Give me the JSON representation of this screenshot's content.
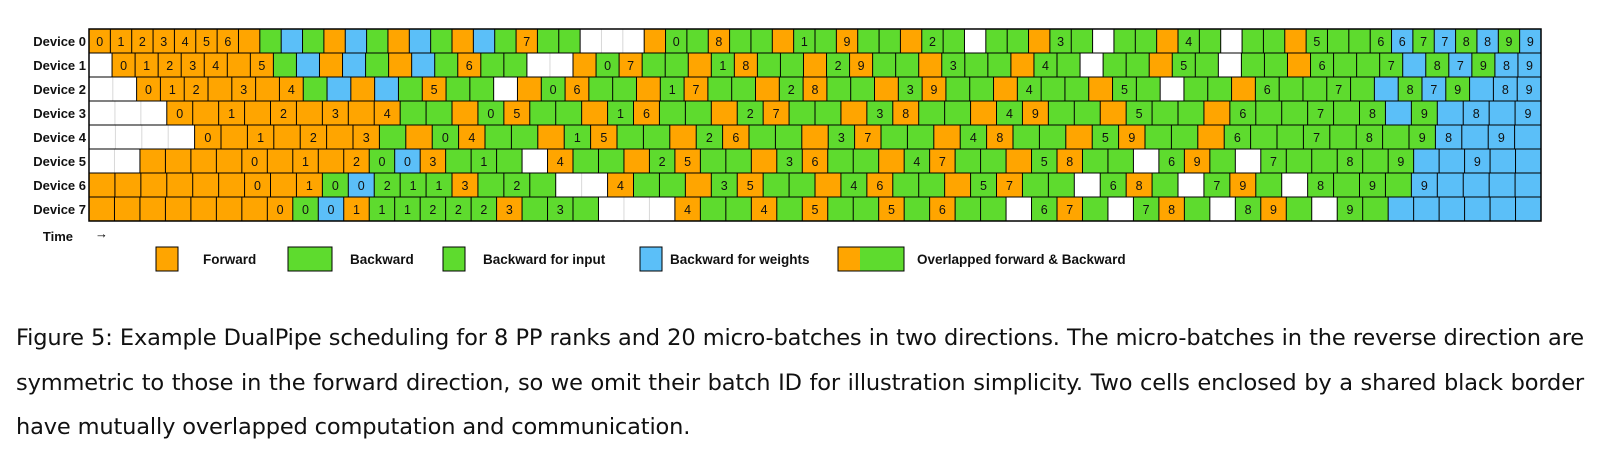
{
  "figure": {
    "devices": [
      "Device 0",
      "Device 1",
      "Device 2",
      "Device 3",
      "Device 4",
      "Device 5",
      "Device 6",
      "Device 7"
    ],
    "time_label": "Time",
    "time_arrow": "→",
    "rows": [
      "F0 F1 F2 F3 F4 F5 F6 F B W B F W B F W B F W B F7 B B _ _ _ F B0 B F8 B B F B1 B F9 B B F B2 B _ B B F B3 B _ B B F B4 B _ B B F B5 B B B6 W6 B7 W7 B8 W8 B9 W9",
      "_ F0 F1 F2 F3 F4 F F5 B W F W B F W B F6 B B _ _ F B0 F7 B B F B1 F8 B B F B2 F9 B B F B3 B B F B4 B _ B B F B5 B _ B B F B6 B B B7 W B8 W7 B9 W8 W9",
      "_ _ F0 F1 F2 F F3 F F4 B W F W B F5 B B _ F B0 F6 B B F B1 F7 B B F B2 F8 B B F B3 F9 B B F B4 B B F B5 B _ B B F B6 B B B7 B W B8 W7 B9 W W8 W9",
      "_ _ _ F0 F F1 F F2 F F3 F F4 B B F B0 F5 B B F B1 F6 B B F B2 F7 B B F B3 F8 B B F B4 F9 B B F B5 B B F B6 B B B7 B B8 W B9 W W8 W W9",
      "_ _ _ _ F0 F F1 F F2 F F3 B F B0 F4 B B F B1 F5 B B F B2 F6 B B F B3 F7 B B F B4 F8 B B F B5 F9 B B F B6 B B B7 B B8 B B9 W8 W W9 W",
      "_ _ F F F F F0 F F1 F F2 B0 W0 F3 B B1 B _ F4 B B F B2 F5 B B F B3 F6 B B F B4 F7 B B F B5 F8 B B _ B6 F9 B _ B7 B B B8 B B9 W W W9 W W",
      "F F F F F F F0 F F1 B0 W0 B2 B1 B1 F3 B B2 B _ _ F4 B B F B3 F5 B B F B4 F6 B B F B5 F7 B B _ B6 F8 B _ B7 F9 B _ B8 B B9 B W9 W W W W",
      "F F F F F F F F0 B0 W0 F1 B1 B1 B2 B2 B2 F3 B B3 B _ _ _ F4 B B F4 B F5 B B F5 B F6 B B _ B6 F7 B _ B7 F8 B _ B8 F9 B _ B9 B W W W W W W"
    ],
    "legend": [
      {
        "kind": "forward",
        "label": "Forward"
      },
      {
        "kind": "backward",
        "label": "Backward"
      },
      {
        "kind": "backward_input",
        "label": "Backward for input"
      },
      {
        "kind": "backward_weights",
        "label": "Backward for weights"
      },
      {
        "kind": "overlapped",
        "label": "Overlapped forward & Backward"
      }
    ],
    "colors": {
      "forward": "#FFA500",
      "backward": "#5EDB2E",
      "weights": "#5BBFF8",
      "empty": "#FFFFFF",
      "grid": "#D8D8D8",
      "border": "#000000"
    }
  },
  "caption": "Figure 5: Example DualPipe scheduling for 8 PP ranks and 20 micro-batches in two directions. The micro-batches in the reverse direction are symmetric to those in the forward direction, so we omit their batch ID for illustration simplicity. Two cells enclosed by a shared black border have mutually overlapped computation and communication."
}
